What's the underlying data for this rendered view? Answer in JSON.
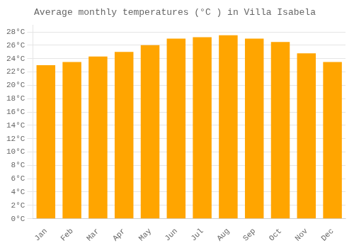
{
  "chart_data": {
    "type": "bar",
    "title": "Average monthly temperatures (°C ) in Villa Isabela",
    "categories": [
      "Jan",
      "Feb",
      "Mar",
      "Apr",
      "May",
      "Jun",
      "Jul",
      "Aug",
      "Sep",
      "Oct",
      "Nov",
      "Dec"
    ],
    "values": [
      23.0,
      23.5,
      24.3,
      25.0,
      26.0,
      27.0,
      27.2,
      27.5,
      27.0,
      26.5,
      24.8,
      23.5
    ],
    "color": "#FFA500",
    "ylim": [
      0,
      29
    ],
    "yticks": [
      {
        "value": 0,
        "label": "0°C"
      },
      {
        "value": 2,
        "label": "2°C"
      },
      {
        "value": 4,
        "label": "4°C"
      },
      {
        "value": 6,
        "label": "6°C"
      },
      {
        "value": 8,
        "label": "8°C"
      },
      {
        "value": 10,
        "label": "10°C"
      },
      {
        "value": 12,
        "label": "12°C"
      },
      {
        "value": 14,
        "label": "14°C"
      },
      {
        "value": 16,
        "label": "16°C"
      },
      {
        "value": 18,
        "label": "18°C"
      },
      {
        "value": 20,
        "label": "20°C"
      },
      {
        "value": 22,
        "label": "22°C"
      },
      {
        "value": 24,
        "label": "24°C"
      },
      {
        "value": 26,
        "label": "26°C"
      },
      {
        "value": 28,
        "label": "28°C"
      }
    ],
    "grid": true
  }
}
